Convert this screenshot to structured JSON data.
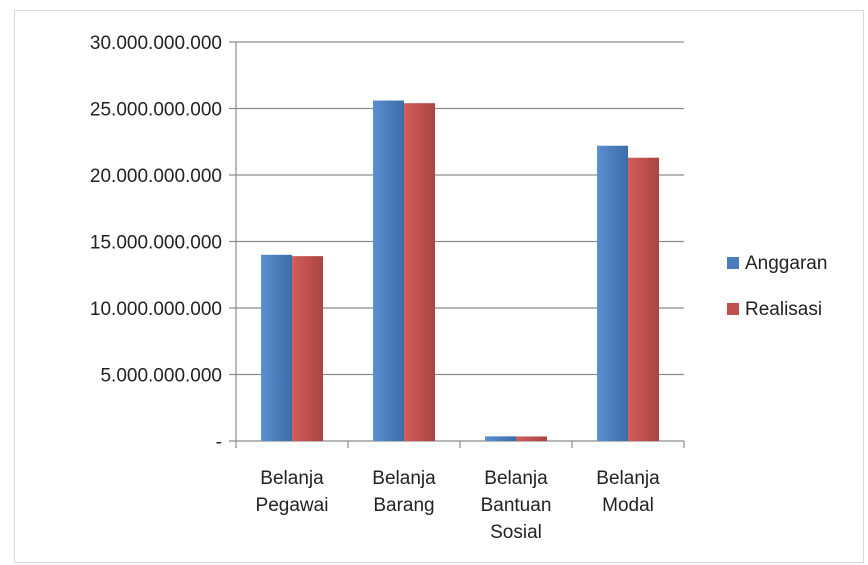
{
  "chart_data": {
    "type": "bar",
    "title": "",
    "xlabel": "",
    "ylabel": "",
    "categories": [
      [
        "Belanja",
        "Pegawai"
      ],
      [
        "Belanja",
        "Barang"
      ],
      [
        "Belanja",
        "Bantuan",
        "Sosial"
      ],
      [
        "Belanja",
        "Modal"
      ]
    ],
    "series": [
      {
        "name": "Anggaran",
        "color": "#4a7ebb",
        "values": [
          14000000000,
          25600000000,
          350000000,
          22200000000
        ]
      },
      {
        "name": "Realisasi",
        "color": "#c0504d",
        "values": [
          13900000000,
          25400000000,
          340000000,
          21300000000
        ]
      }
    ],
    "ylim": [
      0,
      30000000000
    ],
    "yticks": [
      {
        "value": 30000000000,
        "label": "30.000.000.000"
      },
      {
        "value": 25000000000,
        "label": "25.000.000.000"
      },
      {
        "value": 20000000000,
        "label": "20.000.000.000"
      },
      {
        "value": 15000000000,
        "label": "15.000.000.000"
      },
      {
        "value": 10000000000,
        "label": "10.000.000.000"
      },
      {
        "value": 5000000000,
        "label": "5.000.000.000"
      },
      {
        "value": 0,
        "label": "-"
      }
    ],
    "grid": true,
    "legend_position": "right"
  }
}
